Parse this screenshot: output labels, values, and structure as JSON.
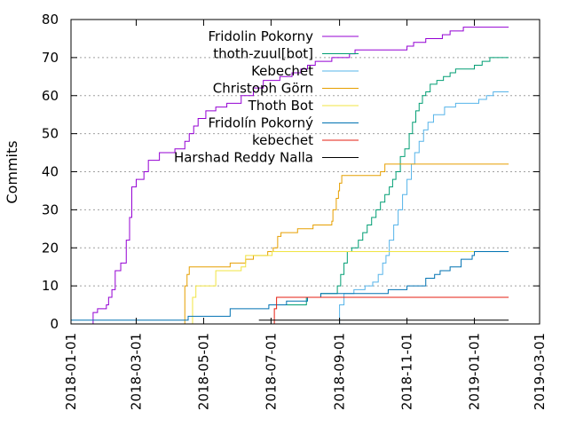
{
  "chart_data": {
    "type": "line",
    "title": "",
    "xlabel": "",
    "ylabel": "Commits",
    "x_type": "date",
    "xlim": [
      "2018-01-01",
      "2019-03-01"
    ],
    "ylim": [
      0,
      80
    ],
    "x_ticks": [
      "2018-01-01",
      "2018-03-01",
      "2018-05-01",
      "2018-07-01",
      "2018-09-01",
      "2018-11-01",
      "2019-01-01",
      "2019-03-01"
    ],
    "y_ticks": [
      "0",
      "10",
      "20",
      "30",
      "40",
      "50",
      "60",
      "70",
      "80"
    ],
    "grid": "dotted",
    "legend_position": "top-center",
    "series": [
      {
        "name": "Fridolin Pokorny",
        "color": "#9400d3",
        "points": [
          [
            "2018-01-20",
            0
          ],
          [
            "2018-01-21",
            3
          ],
          [
            "2018-01-25",
            4
          ],
          [
            "2018-02-02",
            5
          ],
          [
            "2018-02-04",
            7
          ],
          [
            "2018-02-07",
            9
          ],
          [
            "2018-02-10",
            14
          ],
          [
            "2018-02-15",
            16
          ],
          [
            "2018-02-20",
            22
          ],
          [
            "2018-02-23",
            28
          ],
          [
            "2018-02-25",
            36
          ],
          [
            "2018-03-01",
            38
          ],
          [
            "2018-03-08",
            40
          ],
          [
            "2018-03-12",
            43
          ],
          [
            "2018-03-22",
            45
          ],
          [
            "2018-04-05",
            46
          ],
          [
            "2018-04-14",
            48
          ],
          [
            "2018-04-18",
            50
          ],
          [
            "2018-04-22",
            52
          ],
          [
            "2018-04-26",
            54
          ],
          [
            "2018-05-03",
            56
          ],
          [
            "2018-05-12",
            57
          ],
          [
            "2018-05-22",
            58
          ],
          [
            "2018-06-04",
            60
          ],
          [
            "2018-06-15",
            62
          ],
          [
            "2018-06-24",
            64
          ],
          [
            "2018-07-09",
            65
          ],
          [
            "2018-07-20",
            66
          ],
          [
            "2018-07-28",
            67
          ],
          [
            "2018-08-03",
            68
          ],
          [
            "2018-08-10",
            69
          ],
          [
            "2018-08-25",
            70
          ],
          [
            "2018-09-10",
            71
          ],
          [
            "2018-09-15",
            72
          ],
          [
            "2018-10-30",
            72
          ],
          [
            "2018-11-01",
            73
          ],
          [
            "2018-11-07",
            74
          ],
          [
            "2018-11-18",
            75
          ],
          [
            "2018-12-03",
            76
          ],
          [
            "2018-12-10",
            77
          ],
          [
            "2018-12-22",
            78
          ],
          [
            "2019-02-01",
            78
          ]
        ]
      },
      {
        "name": "thoth-zuul[bot]",
        "color": "#009e73",
        "points": [
          [
            "2018-07-10",
            5
          ],
          [
            "2018-08-02",
            7
          ],
          [
            "2018-08-15",
            8
          ],
          [
            "2018-08-30",
            10
          ],
          [
            "2018-09-02",
            13
          ],
          [
            "2018-09-05",
            16
          ],
          [
            "2018-09-08",
            19
          ],
          [
            "2018-09-12",
            20
          ],
          [
            "2018-09-18",
            22
          ],
          [
            "2018-09-22",
            24
          ],
          [
            "2018-09-26",
            26
          ],
          [
            "2018-09-30",
            28
          ],
          [
            "2018-10-04",
            30
          ],
          [
            "2018-10-08",
            32
          ],
          [
            "2018-10-12",
            34
          ],
          [
            "2018-10-16",
            36
          ],
          [
            "2018-10-19",
            38
          ],
          [
            "2018-10-22",
            40
          ],
          [
            "2018-10-26",
            44
          ],
          [
            "2018-10-30",
            46
          ],
          [
            "2018-11-03",
            50
          ],
          [
            "2018-11-06",
            53
          ],
          [
            "2018-11-09",
            56
          ],
          [
            "2018-11-12",
            58
          ],
          [
            "2018-11-15",
            60
          ],
          [
            "2018-11-18",
            61
          ],
          [
            "2018-11-22",
            63
          ],
          [
            "2018-11-28",
            64
          ],
          [
            "2018-12-04",
            65
          ],
          [
            "2018-12-10",
            66
          ],
          [
            "2018-12-15",
            67
          ],
          [
            "2018-12-28",
            67
          ],
          [
            "2019-01-01",
            68
          ],
          [
            "2019-01-08",
            69
          ],
          [
            "2019-01-15",
            70
          ],
          [
            "2019-02-01",
            70
          ]
        ]
      },
      {
        "name": "Kebechet",
        "color": "#56b4e9",
        "points": [
          [
            "2018-08-30",
            0
          ],
          [
            "2018-09-01",
            5
          ],
          [
            "2018-09-05",
            8
          ],
          [
            "2018-09-14",
            9
          ],
          [
            "2018-09-24",
            10
          ],
          [
            "2018-10-01",
            11
          ],
          [
            "2018-10-06",
            13
          ],
          [
            "2018-10-10",
            16
          ],
          [
            "2018-10-13",
            18
          ],
          [
            "2018-10-16",
            22
          ],
          [
            "2018-10-20",
            26
          ],
          [
            "2018-10-24",
            30
          ],
          [
            "2018-10-28",
            34
          ],
          [
            "2018-11-01",
            38
          ],
          [
            "2018-11-05",
            42
          ],
          [
            "2018-11-08",
            45
          ],
          [
            "2018-11-12",
            48
          ],
          [
            "2018-11-16",
            51
          ],
          [
            "2018-11-20",
            53
          ],
          [
            "2018-11-25",
            55
          ],
          [
            "2018-12-05",
            57
          ],
          [
            "2018-12-15",
            58
          ],
          [
            "2019-01-05",
            59
          ],
          [
            "2019-01-12",
            60
          ],
          [
            "2019-01-18",
            61
          ],
          [
            "2019-02-01",
            61
          ]
        ]
      },
      {
        "name": "Christoph Görn",
        "color": "#e69f00",
        "points": [
          [
            "2018-04-12",
            0
          ],
          [
            "2018-04-14",
            10
          ],
          [
            "2018-04-16",
            13
          ],
          [
            "2018-04-18",
            15
          ],
          [
            "2018-05-25",
            16
          ],
          [
            "2018-06-08",
            17
          ],
          [
            "2018-06-15",
            18
          ],
          [
            "2018-06-28",
            19
          ],
          [
            "2018-07-03",
            20
          ],
          [
            "2018-07-07",
            23
          ],
          [
            "2018-07-10",
            24
          ],
          [
            "2018-07-25",
            25
          ],
          [
            "2018-08-08",
            26
          ],
          [
            "2018-08-25",
            27
          ],
          [
            "2018-08-26",
            30
          ],
          [
            "2018-08-29",
            33
          ],
          [
            "2018-08-31",
            35
          ],
          [
            "2018-09-01",
            37
          ],
          [
            "2018-09-03",
            39
          ],
          [
            "2018-09-15",
            39
          ],
          [
            "2018-10-08",
            40
          ],
          [
            "2018-10-12",
            42
          ],
          [
            "2019-02-01",
            42
          ]
        ]
      },
      {
        "name": "Thoth Bot",
        "color": "#f0e442",
        "points": [
          [
            "2018-04-19",
            0
          ],
          [
            "2018-04-21",
            7
          ],
          [
            "2018-04-24",
            10
          ],
          [
            "2018-05-01",
            10
          ],
          [
            "2018-05-12",
            14
          ],
          [
            "2018-06-04",
            15
          ],
          [
            "2018-06-08",
            18
          ],
          [
            "2018-07-02",
            19
          ],
          [
            "2019-02-01",
            19
          ]
        ]
      },
      {
        "name": "Fridolín Pokorný",
        "color": "#0072b2",
        "points": [
          [
            "2018-01-01",
            1
          ],
          [
            "2018-04-15",
            1
          ],
          [
            "2018-04-17",
            2
          ],
          [
            "2018-05-20",
            2
          ],
          [
            "2018-05-25",
            4
          ],
          [
            "2018-06-25",
            4
          ],
          [
            "2018-06-29",
            5
          ],
          [
            "2018-07-15",
            6
          ],
          [
            "2018-08-03",
            7
          ],
          [
            "2018-08-15",
            8
          ],
          [
            "2018-09-01",
            8
          ],
          [
            "2018-10-15",
            9
          ],
          [
            "2018-11-01",
            10
          ],
          [
            "2018-11-18",
            12
          ],
          [
            "2018-11-26",
            13
          ],
          [
            "2018-12-01",
            14
          ],
          [
            "2018-12-10",
            15
          ],
          [
            "2018-12-20",
            17
          ],
          [
            "2018-12-30",
            18
          ],
          [
            "2019-01-01",
            19
          ],
          [
            "2019-02-01",
            19
          ]
        ]
      },
      {
        "name": "kebechet",
        "color": "#e51e10",
        "points": [
          [
            "2018-06-27",
            0
          ],
          [
            "2018-07-04",
            4
          ],
          [
            "2018-07-06",
            7
          ],
          [
            "2019-02-01",
            7
          ]
        ]
      },
      {
        "name": "Harshad Reddy Nalla",
        "color": "#000000",
        "points": [
          [
            "2018-06-20",
            1
          ],
          [
            "2019-02-01",
            1
          ]
        ]
      }
    ]
  }
}
